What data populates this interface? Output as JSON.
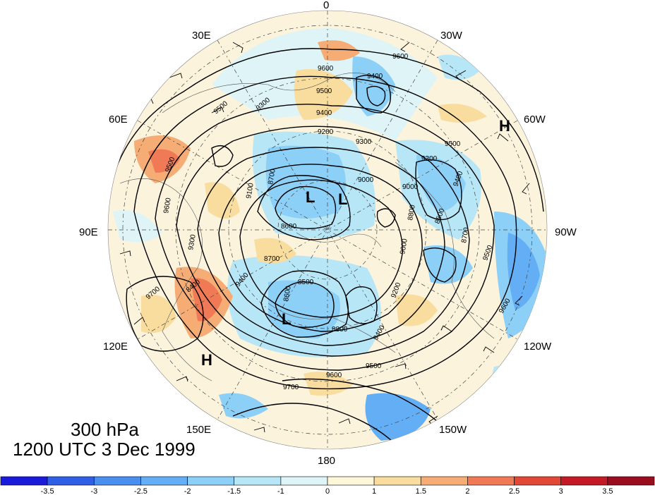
{
  "level": "300 hPa",
  "valid_time": "1200 UTC 3 Dec 1999",
  "longitude_labels": {
    "lon_0": "0",
    "lon_30e": "30E",
    "lon_30w": "30W",
    "lon_60e": "60E",
    "lon_60w": "60W",
    "lon_90e": "90E",
    "lon_90w": "90W",
    "lon_120e": "120E",
    "lon_120w": "120W",
    "lon_150e": "150E",
    "lon_150w": "150W",
    "lon_180": "180"
  },
  "contour_labels": [
    "9600",
    "9600",
    "9400",
    "9500",
    "9500",
    "9400",
    "9300",
    "9200",
    "9300",
    "9000",
    "8700",
    "9100",
    "9500",
    "9300",
    "9000",
    "8800",
    "9500",
    "9600",
    "9400",
    "9300",
    "9000",
    "8600",
    "8500",
    "8700",
    "9400",
    "8600",
    "8800",
    "9200",
    "9400",
    "9500",
    "9600",
    "9700",
    "8400",
    "9700",
    "9600",
    "9500",
    "8600",
    "8700"
  ],
  "centers": [
    {
      "label": "H"
    },
    {
      "label": "H"
    },
    {
      "label": "L"
    },
    {
      "label": "L"
    },
    {
      "label": "L"
    }
  ],
  "colorbar": {
    "ticks": [
      "-3.5",
      "-3",
      "-2.5",
      "-2",
      "-1.5",
      "-1",
      "0",
      "1",
      "1.5",
      "2",
      "2.5",
      "3",
      "3.5"
    ],
    "colors": [
      "#1a1adb",
      "#2f5fe6",
      "#4a8ff0",
      "#64aef5",
      "#8dd0f7",
      "#b7e6f7",
      "#dff4f7",
      "#fdf6d8",
      "#f9dd9f",
      "#f5ad75",
      "#ef7a55",
      "#e24836",
      "#c41a26",
      "#9a0d1f"
    ]
  }
}
